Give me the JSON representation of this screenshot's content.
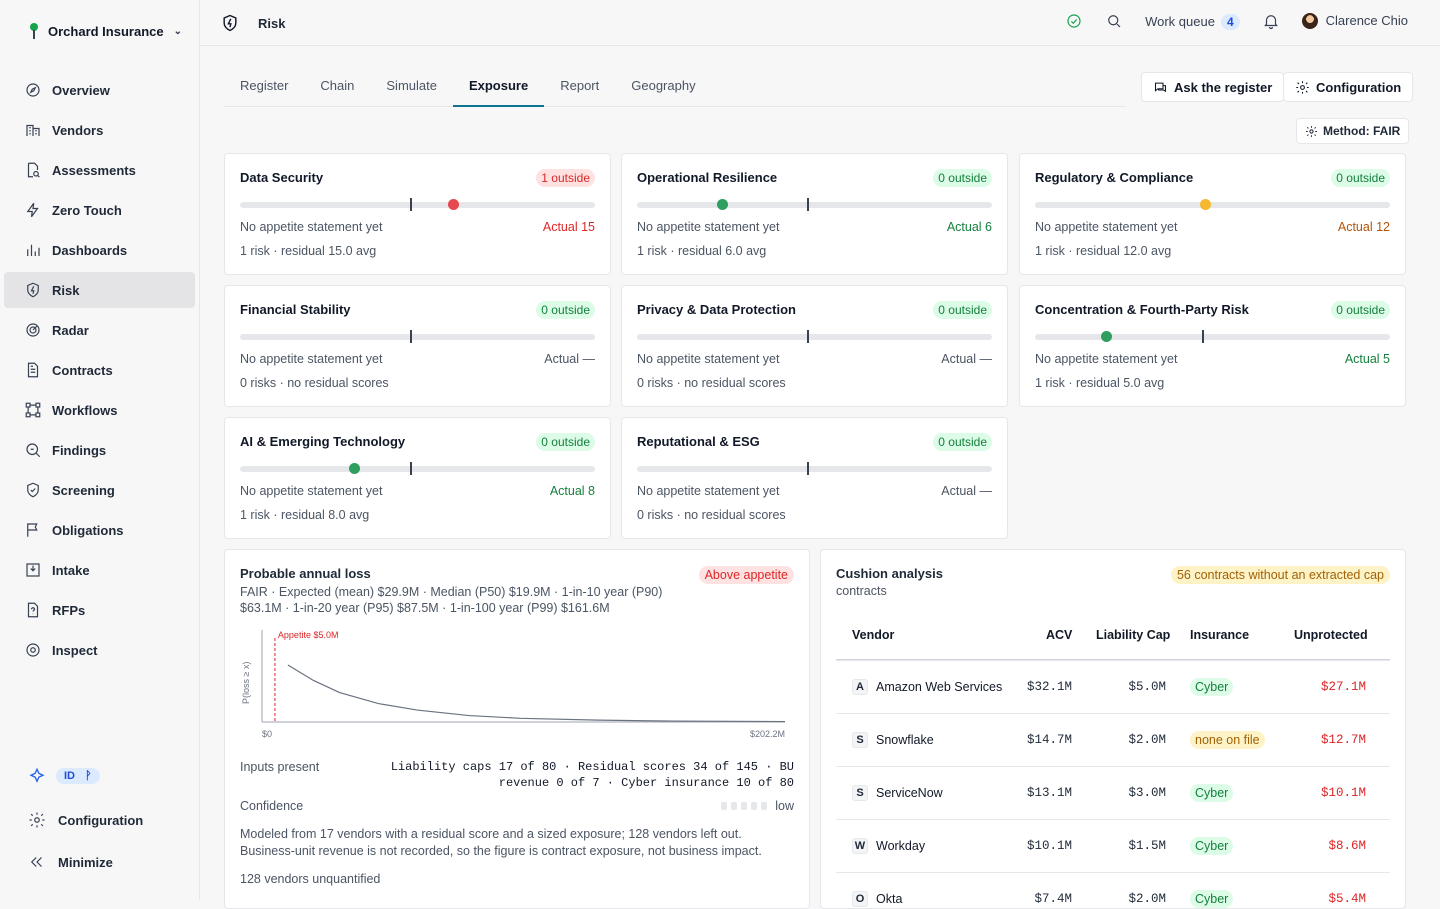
{
  "sidebar": {
    "org": "Orchard Insurance",
    "items": [
      {
        "label": "Overview",
        "icon": "compass-icon"
      },
      {
        "label": "Vendors",
        "icon": "building-icon"
      },
      {
        "label": "Assessments",
        "icon": "file-search-icon"
      },
      {
        "label": "Zero Touch",
        "icon": "bolt-icon"
      },
      {
        "label": "Dashboards",
        "icon": "bar-chart-icon"
      },
      {
        "label": "Risk",
        "icon": "shield-bolt-icon"
      },
      {
        "label": "Radar",
        "icon": "radar-icon"
      },
      {
        "label": "Contracts",
        "icon": "file-text-icon"
      },
      {
        "label": "Workflows",
        "icon": "workflow-icon"
      },
      {
        "label": "Findings",
        "icon": "search-file-icon"
      },
      {
        "label": "Screening",
        "icon": "shield-check-icon"
      },
      {
        "label": "Obligations",
        "icon": "flag-icon"
      },
      {
        "label": "Intake",
        "icon": "inbox-icon"
      },
      {
        "label": "RFPs",
        "icon": "file-question-icon"
      },
      {
        "label": "Inspect",
        "icon": "inspect-icon"
      }
    ],
    "tag_id": "ID",
    "tag_branch": "ᚹ",
    "config_label": "Configuration",
    "minimize_label": "Minimize"
  },
  "topbar": {
    "page": "Risk",
    "work_queue_label": "Work queue",
    "work_queue_count": "4",
    "user": "Clarence Chio"
  },
  "tabs": [
    "Register",
    "Chain",
    "Simulate",
    "Exposure",
    "Report",
    "Geography"
  ],
  "actions": {
    "ask": "Ask the register",
    "config": "Configuration",
    "method": "Method: FAIR"
  },
  "categories": [
    {
      "title": "Data Security",
      "badge": "1 outside",
      "stmt": "No appetite statement yet",
      "actual": "Actual 15",
      "meta": "1 risk · residual 15.0 avg",
      "status": "red",
      "value_frac": 0.6
    },
    {
      "title": "Operational Resilience",
      "badge": "0 outside",
      "stmt": "No appetite statement yet",
      "actual": "Actual 6",
      "meta": "1 risk · residual 6.0 avg",
      "status": "green",
      "value_frac": 0.24
    },
    {
      "title": "Regulatory & Compliance",
      "badge": "0 outside",
      "stmt": "No appetite statement yet",
      "actual": "Actual 12",
      "meta": "1 risk · residual 12.0 avg",
      "status": "yellow",
      "value_frac": 0.48
    },
    {
      "title": "Financial Stability",
      "badge": "0 outside",
      "stmt": "No appetite statement yet",
      "actual": "Actual —",
      "meta": "0 risks · no residual scores",
      "status": "none"
    },
    {
      "title": "Privacy & Data Protection",
      "badge": "0 outside",
      "stmt": "No appetite statement yet",
      "actual": "Actual —",
      "meta": "0 risks · no residual scores",
      "status": "none"
    },
    {
      "title": "Concentration & Fourth-Party Risk",
      "badge": "0 outside",
      "stmt": "No appetite statement yet",
      "actual": "Actual 5",
      "meta": "1 risk · residual 5.0 avg",
      "status": "green",
      "value_frac": 0.2
    },
    {
      "title": "AI & Emerging Technology",
      "badge": "0 outside",
      "stmt": "No appetite statement yet",
      "actual": "Actual 8",
      "meta": "1 risk · residual 8.0 avg",
      "status": "green",
      "value_frac": 0.32
    },
    {
      "title": "Reputational & ESG",
      "badge": "0 outside",
      "stmt": "No appetite statement yet",
      "actual": "Actual —",
      "meta": "0 risks · no residual scores",
      "status": "none"
    }
  ],
  "colors": {
    "red": "#e5484d",
    "green": "#2f9e5f",
    "yellow": "#f5b82e",
    "appetite": "#dc2626",
    "curve": "#6b7280"
  },
  "pal": {
    "title": "Probable annual loss",
    "subtitle": "FAIR · Expected (mean) $29.9M · Median (P50) $19.9M · 1-in-10 year (P90) $63.1M · 1-in-20 year (P95) $87.5M · 1-in-100 year (P99) $161.6M",
    "badge": "Above appetite",
    "inputs_label": "Inputs present",
    "inputs_value": "Liability caps 17 of 80 · Residual scores 34 of 145 · BU revenue 0 of 7 · Cyber insurance 10 of 80",
    "confidence_label": "Confidence",
    "confidence_value": "low",
    "note": "Modeled from 17 vendors with a residual score and a sized exposure; 128 vendors left out. Business-unit revenue is not recorded, so the figure is contract exposure, not business impact.",
    "unquantified": "128 vendors unquantified"
  },
  "chart_data": {
    "type": "line",
    "title": "",
    "xlabel": "",
    "ylabel": "P(loss ≥ x)",
    "x_tick_labels": [
      "$0",
      "$202.2M"
    ],
    "xlim": [
      0,
      202.2
    ],
    "appetite": {
      "label": "Appetite $5.0M",
      "x": 5.0
    },
    "series": [
      {
        "x": [
          10,
          20,
          30,
          45,
          60,
          80,
          100,
          130,
          160,
          202.2
        ],
        "y": [
          0.62,
          0.45,
          0.32,
          0.2,
          0.13,
          0.07,
          0.04,
          0.02,
          0.01,
          0.005
        ]
      }
    ],
    "ylim": [
      0,
      1
    ]
  },
  "cushion": {
    "title": "Cushion analysis",
    "subtitle": "contracts",
    "badge": "56 contracts without an extracted cap",
    "headers": [
      "Vendor",
      "ACV",
      "Liability Cap",
      "Insurance",
      "Unprotected"
    ],
    "rows": [
      {
        "letter": "A",
        "vendor": "Amazon Web Services",
        "acv": "$32.1M",
        "cap": "$5.0M",
        "insurance": "Cyber",
        "ins_status": "green",
        "unprotected": "$27.1M"
      },
      {
        "letter": "S",
        "vendor": "Snowflake",
        "acv": "$14.7M",
        "cap": "$2.0M",
        "insurance": "none on file",
        "ins_status": "yellow",
        "unprotected": "$12.7M"
      },
      {
        "letter": "S",
        "vendor": "ServiceNow",
        "acv": "$13.1M",
        "cap": "$3.0M",
        "insurance": "Cyber",
        "ins_status": "green",
        "unprotected": "$10.1M"
      },
      {
        "letter": "W",
        "vendor": "Workday",
        "acv": "$10.1M",
        "cap": "$1.5M",
        "insurance": "Cyber",
        "ins_status": "green",
        "unprotected": "$8.6M"
      },
      {
        "letter": "O",
        "vendor": "Okta",
        "acv": "$7.4M",
        "cap": "$2.0M",
        "insurance": "Cyber",
        "ins_status": "green",
        "unprotected": "$5.4M"
      }
    ]
  }
}
